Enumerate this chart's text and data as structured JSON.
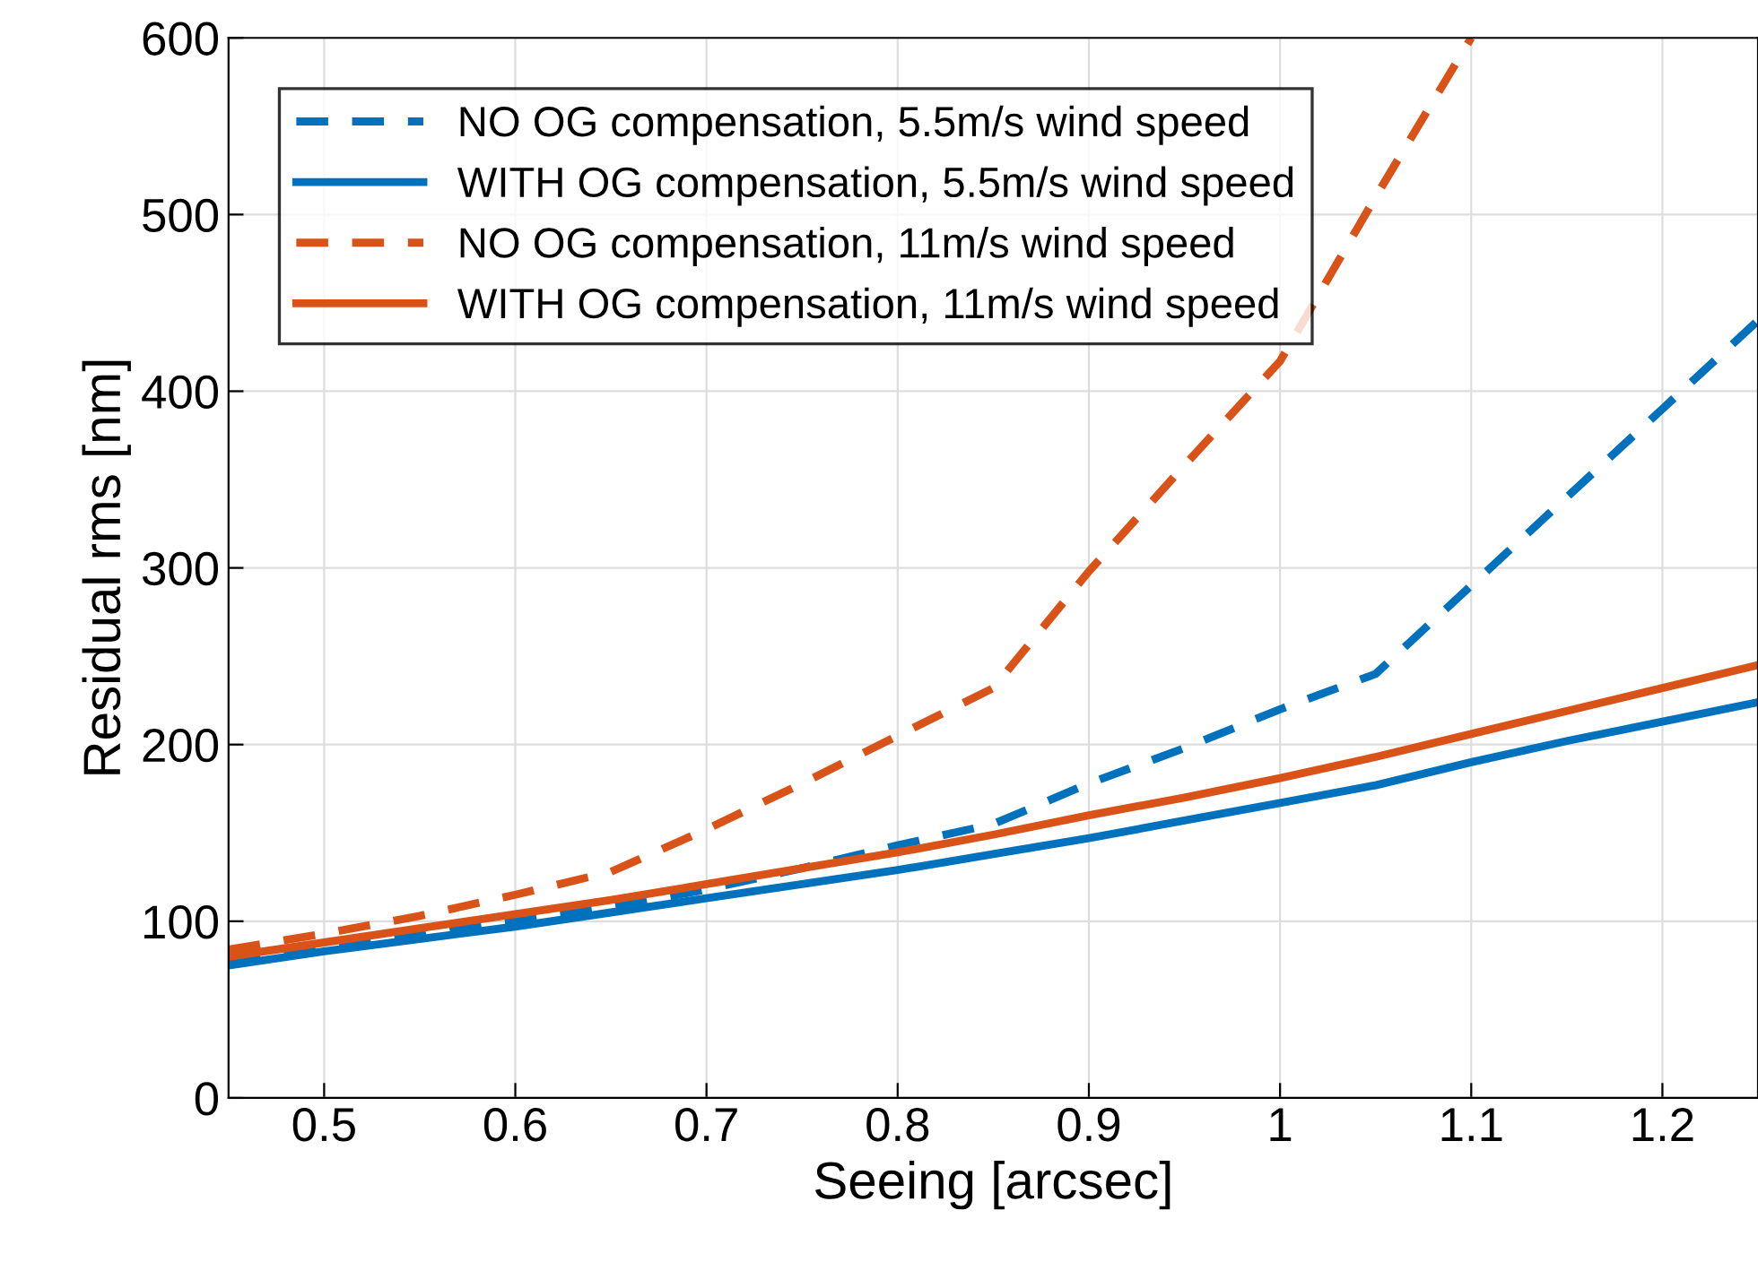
{
  "chart_data": {
    "type": "line",
    "xlabel": "Seeing [arcsec]",
    "ylabel": "Residual rms [nm]",
    "xlim": [
      0.45,
      1.25
    ],
    "ylim": [
      0,
      600
    ],
    "xticks": [
      0.5,
      0.6,
      0.7,
      0.8,
      0.9,
      1,
      1.1,
      1.2
    ],
    "yticks": [
      0,
      100,
      200,
      300,
      400,
      500,
      600
    ],
    "grid": true,
    "legend": "top left",
    "series": [
      {
        "name": "NO OG compensation, 5.5m/s wind speed",
        "color": "#0072bd",
        "line_style": "dashed",
        "x": [
          0.45,
          0.5,
          0.55,
          0.6,
          0.65,
          0.7,
          0.75,
          0.8,
          0.85,
          0.9,
          0.95,
          1.0,
          1.05,
          1.1,
          1.15,
          1.2,
          1.25
        ],
        "values": [
          78,
          85,
          92,
          100,
          108,
          118,
          130,
          143,
          155,
          178,
          198,
          220,
          240,
          290,
          340,
          390,
          440
        ]
      },
      {
        "name": "WITH OG compensation, 5.5m/s wind speed",
        "color": "#0072bd",
        "line_style": "solid",
        "x": [
          0.45,
          0.5,
          0.55,
          0.6,
          0.65,
          0.7,
          0.75,
          0.8,
          0.85,
          0.9,
          0.95,
          1.0,
          1.05,
          1.1,
          1.15,
          1.2,
          1.25
        ],
        "values": [
          75,
          83,
          90,
          97,
          105,
          113,
          121,
          129,
          138,
          147,
          157,
          167,
          177,
          190,
          202,
          213,
          224
        ]
      },
      {
        "name": "NO OG compensation, 11m/s wind speed",
        "color": "#d95319",
        "line_style": "dashed",
        "x": [
          0.45,
          0.5,
          0.55,
          0.6,
          0.65,
          0.7,
          0.75,
          0.8,
          0.85,
          0.9,
          0.95,
          1.0,
          1.05,
          1.1
        ],
        "values": [
          84,
          93,
          103,
          115,
          128,
          152,
          178,
          205,
          232,
          298,
          358,
          417,
          510,
          600
        ]
      },
      {
        "name": "WITH OG compensation, 11m/s wind speed",
        "color": "#d95319",
        "line_style": "solid",
        "x": [
          0.45,
          0.5,
          0.55,
          0.6,
          0.65,
          0.7,
          0.75,
          0.8,
          0.85,
          0.9,
          0.95,
          1.0,
          1.05,
          1.1,
          1.15,
          1.2,
          1.25
        ],
        "values": [
          80,
          88,
          96,
          104,
          112,
          121,
          130,
          139,
          149,
          160,
          170,
          181,
          193,
          206,
          219,
          232,
          245
        ]
      }
    ]
  }
}
